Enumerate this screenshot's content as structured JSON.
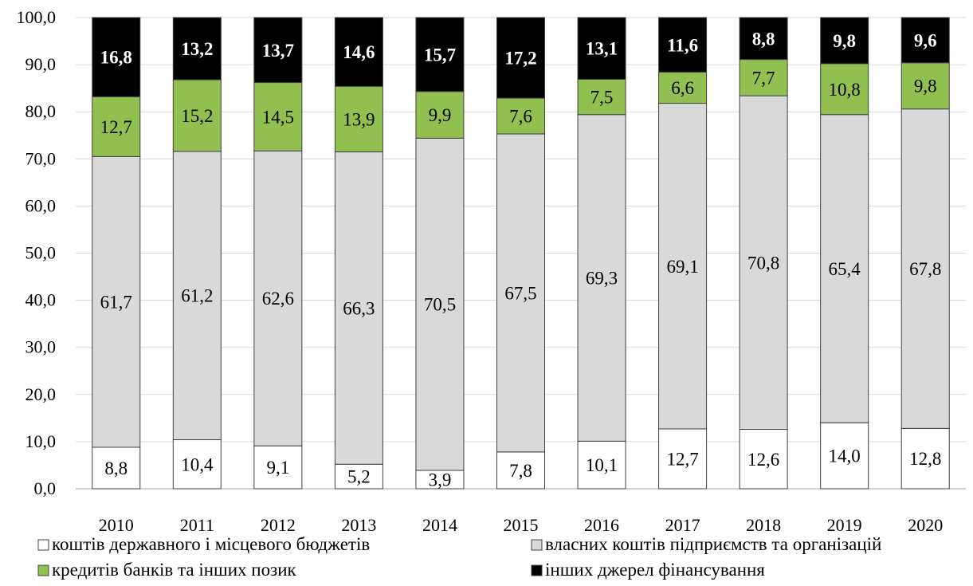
{
  "chart_data": {
    "type": "bar",
    "stacked": true,
    "categories": [
      "2010",
      "2011",
      "2012",
      "2013",
      "2014",
      "2015",
      "2016",
      "2017",
      "2018",
      "2019",
      "2020"
    ],
    "series": [
      {
        "name": "коштів державного і місцевого бюджетів",
        "color": "#ffffff",
        "label_color": "#000000",
        "values": [
          8.8,
          10.4,
          9.1,
          5.2,
          3.9,
          7.8,
          10.1,
          12.7,
          12.6,
          14.0,
          12.8
        ]
      },
      {
        "name": "власних коштів підприємств та організацій",
        "color": "#d9d9d9",
        "label_color": "#000000",
        "values": [
          61.7,
          61.2,
          62.6,
          66.3,
          70.5,
          67.5,
          69.3,
          69.1,
          70.8,
          65.4,
          67.8
        ]
      },
      {
        "name": "кредитів банків та інших позик",
        "color": "#92c050",
        "label_color": "#000000",
        "values": [
          12.7,
          15.2,
          14.5,
          13.9,
          9.9,
          7.6,
          7.5,
          6.6,
          7.7,
          10.8,
          9.8
        ]
      },
      {
        "name": "інших джерел фінансування",
        "color": "#000000",
        "label_color": "#ffffff",
        "values": [
          16.8,
          13.2,
          13.7,
          14.6,
          15.7,
          17.2,
          13.1,
          11.6,
          8.8,
          9.8,
          9.6
        ]
      }
    ],
    "title": "",
    "xlabel": "",
    "ylabel": "",
    "ylim": [
      0,
      100
    ],
    "yticks": [
      "0,0",
      "10,0",
      "20,0",
      "30,0",
      "40,0",
      "50,0",
      "60,0",
      "70,0",
      "80,0",
      "90,0",
      "100,0"
    ],
    "grid": true,
    "legend_position": "bottom"
  }
}
